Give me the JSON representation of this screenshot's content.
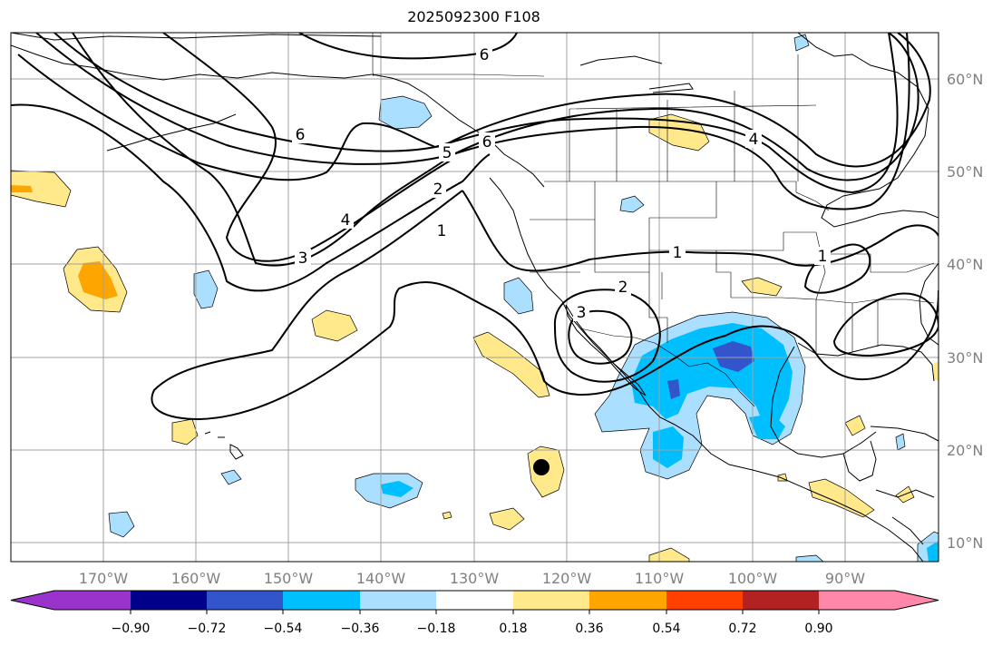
{
  "title": "2025092300 F108",
  "colors": {
    "neg_0.90": "#9933cc",
    "neg_0.72": "#00008b",
    "neg_0.54": "#3355cc",
    "neg_0.36": "#00bfff",
    "neg_0.18": "#aadfff",
    "zero": "#ffffff",
    "pos_0.18": "#ffe98a",
    "pos_0.36": "#ffa500",
    "pos_0.54": "#ff4000",
    "pos_0.72": "#b22222",
    "pos_0.90": "#ff88aa",
    "grid": "#a0a0a0",
    "tick_label": "#808080"
  },
  "map": {
    "lon_labels": [
      "170°W",
      "160°W",
      "150°W",
      "140°W",
      "130°W",
      "120°W",
      "110°W",
      "100°W",
      "90°W"
    ],
    "lat_labels": [
      "60°N",
      "50°N",
      "40°N",
      "30°N",
      "20°N",
      "10°N"
    ],
    "contour_labels": [
      "6",
      "6",
      "5",
      "6",
      "2",
      "4",
      "3",
      "1",
      "1",
      "2",
      "3",
      "4",
      "1"
    ]
  },
  "colorbar": {
    "bins": [
      {
        "color": "#9933cc"
      },
      {
        "color": "#00008b"
      },
      {
        "color": "#3355cc"
      },
      {
        "color": "#00bfff"
      },
      {
        "color": "#aadfff"
      },
      {
        "color": "#ffffff"
      },
      {
        "color": "#ffe98a"
      },
      {
        "color": "#ffa500"
      },
      {
        "color": "#ff4000"
      },
      {
        "color": "#b22222"
      },
      {
        "color": "#ff88aa"
      }
    ],
    "tick_labels": [
      "−0.90",
      "−0.72",
      "−0.54",
      "−0.36",
      "−0.18",
      "0.18",
      "0.36",
      "0.54",
      "0.72",
      "0.90"
    ]
  }
}
